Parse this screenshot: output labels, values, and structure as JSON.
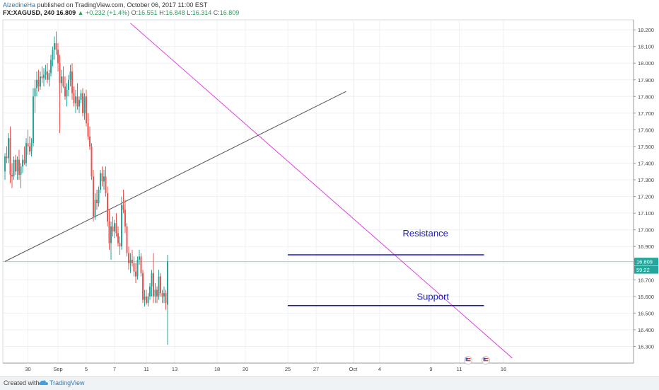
{
  "header": {
    "author": "AlzedineHa",
    "published": "published on TradingView.com, October 06, 2017 11:00 EST",
    "symbol": "FX:XAGUSD, 240",
    "last": "16.809",
    "change": "▲ +0.232 (+1.4%)",
    "o_label": "O:",
    "o_value": "16.551",
    "h_label": "H:",
    "h_value": "16.848",
    "l_label": "L:",
    "l_value": "16.314",
    "c_label": "C:",
    "c_value": "16.809"
  },
  "footer": {
    "created_with": "Created with",
    "brand": "TradingView"
  },
  "colors": {
    "up": "#26a69a",
    "down": "#ef5350",
    "resistance": "#1a1abf",
    "trend_down": "#e040e0",
    "trend_up": "#555555",
    "price_badge": "#26a69a"
  },
  "chart_data": {
    "type": "candlestick",
    "title": "",
    "xlabel": "",
    "ylabel": "",
    "ylim": [
      16.2,
      18.26
    ],
    "y_ticks": [
      "18.200",
      "18.100",
      "18.000",
      "17.900",
      "17.800",
      "17.700",
      "17.600",
      "17.500",
      "17.400",
      "17.300",
      "17.200",
      "17.100",
      "17.000",
      "16.900",
      "16.800",
      "16.700",
      "16.600",
      "16.500",
      "16.400",
      "16.300"
    ],
    "x_ticks": [
      "30",
      "Sep",
      "5",
      "7",
      "11",
      "13",
      "18",
      "20",
      "25",
      "27",
      "Oct",
      "4",
      "9",
      "11",
      "16"
    ],
    "x_tick_bars": [
      13,
      30,
      46,
      62,
      80,
      96,
      120,
      136,
      160,
      176,
      197,
      212,
      241,
      257,
      282
    ],
    "last_price_badge": "16.809",
    "countdown_badge": "59:22",
    "candles": [
      [
        17.35,
        17.46,
        17.3,
        17.44
      ],
      [
        17.44,
        17.5,
        17.4,
        17.43
      ],
      [
        17.43,
        17.58,
        17.4,
        17.55
      ],
      [
        17.55,
        17.62,
        17.28,
        17.33
      ],
      [
        17.33,
        17.4,
        17.25,
        17.32
      ],
      [
        17.32,
        17.44,
        17.3,
        17.42
      ],
      [
        17.42,
        17.45,
        17.33,
        17.35
      ],
      [
        17.35,
        17.44,
        17.3,
        17.42
      ],
      [
        17.42,
        17.48,
        17.3,
        17.33
      ],
      [
        17.33,
        17.4,
        17.25,
        17.38
      ],
      [
        17.38,
        17.45,
        17.34,
        17.42
      ],
      [
        17.42,
        17.5,
        17.39,
        17.4
      ],
      [
        17.4,
        17.55,
        17.38,
        17.52
      ],
      [
        17.52,
        17.6,
        17.45,
        17.5
      ],
      [
        17.5,
        17.56,
        17.45,
        17.47
      ],
      [
        17.47,
        17.55,
        17.44,
        17.52
      ],
      [
        17.52,
        17.85,
        17.5,
        17.8
      ],
      [
        17.8,
        17.9,
        17.7,
        17.85
      ],
      [
        17.85,
        17.95,
        17.8,
        17.9
      ],
      [
        17.9,
        17.96,
        17.83,
        17.86
      ],
      [
        17.86,
        17.95,
        17.84,
        17.92
      ],
      [
        17.92,
        17.98,
        17.88,
        17.91
      ],
      [
        17.91,
        17.97,
        17.86,
        17.93
      ],
      [
        17.93,
        17.99,
        17.9,
        17.95
      ],
      [
        17.95,
        18.0,
        17.88,
        17.9
      ],
      [
        17.9,
        17.96,
        17.86,
        17.94
      ],
      [
        17.94,
        18.05,
        17.92,
        18.02
      ],
      [
        18.02,
        18.1,
        17.98,
        18.08
      ],
      [
        18.08,
        18.16,
        18.02,
        18.12
      ],
      [
        18.12,
        18.19,
        18.05,
        18.08
      ],
      [
        18.08,
        18.12,
        17.95,
        18.0
      ],
      [
        18.0,
        18.05,
        17.58,
        17.88
      ],
      [
        17.88,
        17.96,
        17.82,
        17.92
      ],
      [
        17.92,
        17.98,
        17.85,
        17.86
      ],
      [
        17.86,
        17.92,
        17.78,
        17.8
      ],
      [
        17.8,
        17.88,
        17.74,
        17.84
      ],
      [
        17.84,
        17.93,
        17.8,
        17.9
      ],
      [
        17.9,
        17.99,
        17.86,
        17.95
      ],
      [
        17.95,
        18.0,
        17.78,
        17.82
      ],
      [
        17.82,
        17.86,
        17.74,
        17.76
      ],
      [
        17.76,
        17.84,
        17.7,
        17.8
      ],
      [
        17.8,
        17.88,
        17.72,
        17.74
      ],
      [
        17.74,
        17.8,
        17.7,
        17.78
      ],
      [
        17.78,
        17.84,
        17.76,
        17.82
      ],
      [
        17.82,
        17.85,
        17.68,
        17.7
      ],
      [
        17.7,
        17.82,
        17.66,
        17.8
      ],
      [
        17.8,
        17.84,
        17.62,
        17.64
      ],
      [
        17.64,
        17.7,
        17.54,
        17.56
      ],
      [
        17.56,
        17.62,
        17.48,
        17.5
      ],
      [
        17.5,
        17.52,
        17.3,
        17.32
      ],
      [
        17.32,
        17.36,
        17.05,
        17.08
      ],
      [
        17.08,
        17.22,
        17.06,
        17.18
      ],
      [
        17.18,
        17.24,
        17.12,
        17.16
      ],
      [
        17.16,
        17.26,
        17.14,
        17.24
      ],
      [
        17.24,
        17.36,
        17.22,
        17.34
      ],
      [
        17.34,
        17.38,
        17.26,
        17.29
      ],
      [
        17.29,
        17.36,
        17.24,
        17.32
      ],
      [
        17.32,
        17.38,
        17.2,
        17.22
      ],
      [
        17.22,
        17.26,
        17.02,
        17.05
      ],
      [
        17.05,
        17.12,
        16.88,
        16.92
      ],
      [
        16.92,
        17.05,
        16.82,
        17.02
      ],
      [
        17.02,
        17.08,
        16.96,
        16.99
      ],
      [
        16.99,
        17.06,
        16.95,
        17.04
      ],
      [
        17.04,
        17.1,
        16.96,
        16.98
      ],
      [
        16.98,
        17.02,
        16.9,
        16.92
      ],
      [
        16.92,
        16.96,
        16.85,
        16.9
      ],
      [
        16.9,
        17.2,
        16.88,
        17.15
      ],
      [
        17.15,
        17.24,
        17.1,
        17.12
      ],
      [
        17.12,
        17.18,
        16.98,
        17.02
      ],
      [
        17.02,
        17.04,
        16.84,
        16.86
      ],
      [
        16.86,
        16.9,
        16.76,
        16.8
      ],
      [
        16.8,
        16.86,
        16.74,
        16.82
      ],
      [
        16.82,
        16.88,
        16.78,
        16.8
      ],
      [
        16.8,
        16.84,
        16.72,
        16.75
      ],
      [
        16.75,
        16.8,
        16.68,
        16.72
      ],
      [
        16.72,
        16.84,
        16.7,
        16.82
      ],
      [
        16.82,
        16.88,
        16.79,
        16.84
      ],
      [
        16.84,
        16.86,
        16.72,
        16.74
      ],
      [
        16.74,
        16.76,
        16.56,
        16.58
      ],
      [
        16.58,
        16.64,
        16.54,
        16.6
      ],
      [
        16.6,
        16.64,
        16.55,
        16.56
      ],
      [
        16.56,
        16.62,
        16.54,
        16.6
      ],
      [
        16.6,
        16.68,
        16.58,
        16.66
      ],
      [
        16.66,
        16.76,
        16.6,
        16.74
      ],
      [
        16.74,
        16.86,
        16.56,
        16.6
      ],
      [
        16.6,
        16.68,
        16.56,
        16.64
      ],
      [
        16.64,
        16.66,
        16.56,
        16.6
      ],
      [
        16.6,
        16.76,
        16.58,
        16.72
      ],
      [
        16.72,
        16.74,
        16.6,
        16.62
      ],
      [
        16.62,
        16.64,
        16.56,
        16.6
      ],
      [
        16.6,
        16.66,
        16.56,
        16.62
      ],
      [
        16.62,
        16.64,
        16.52,
        16.56
      ],
      [
        16.55,
        16.85,
        16.31,
        16.81
      ]
    ],
    "annotations": [
      {
        "text": "Resistance",
        "x_bar": 225,
        "y": 16.96
      },
      {
        "text": "Support",
        "x_bar": 233,
        "y": 16.58
      }
    ],
    "horizontal_lines": [
      {
        "name": "resistance",
        "y": 16.85,
        "from_bar": 160,
        "to_bar": 271
      },
      {
        "name": "support",
        "y": 16.545,
        "from_bar": 160,
        "to_bar": 271
      }
    ],
    "trend_lines": [
      {
        "name": "downtrend",
        "points": [
          [
            71,
            18.24
          ],
          [
            287,
            16.23
          ]
        ]
      },
      {
        "name": "uptrend",
        "points": [
          [
            0,
            16.81
          ],
          [
            193,
            17.83
          ]
        ]
      }
    ]
  }
}
